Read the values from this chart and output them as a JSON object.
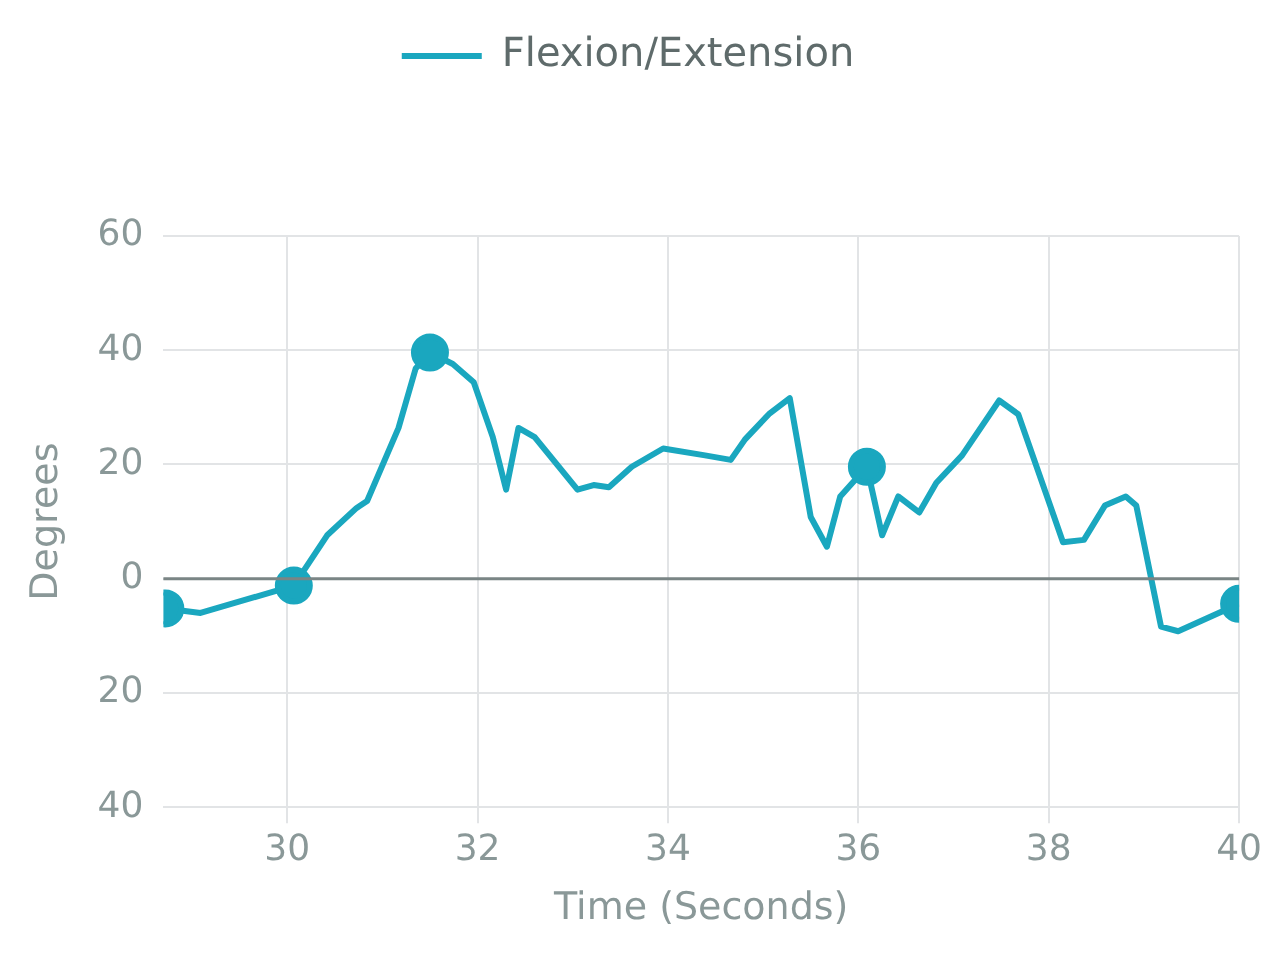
{
  "chart_data": {
    "type": "line",
    "xlabel": "Time (Seconds)",
    "ylabel": "Degrees",
    "legend": "top",
    "grid": true,
    "xlim": [
      28.7,
      40
    ],
    "xticks": [
      30,
      32,
      34,
      36,
      38,
      40
    ],
    "ylim": [
      -40,
      60
    ],
    "yticks": [
      {
        "value": -40,
        "label": "40"
      },
      {
        "value": -20,
        "label": "20"
      },
      0,
      20,
      40,
      60
    ],
    "ref_lines": [
      {
        "axis": "y",
        "value": 0,
        "color": "#7a8585"
      }
    ],
    "series": [
      {
        "name": "Flexion/Extension",
        "color": "#1aa7bf",
        "marker": "none",
        "x": [
          28.72,
          29.09,
          30.07,
          30.42,
          30.73,
          30.84,
          31.17,
          31.35,
          31.5,
          31.74,
          31.96,
          32.16,
          32.3,
          32.43,
          32.6,
          33.05,
          33.22,
          33.38,
          33.62,
          33.95,
          34.39,
          34.66,
          34.81,
          35.06,
          35.28,
          35.5,
          35.67,
          35.81,
          36.09,
          36.25,
          36.42,
          36.64,
          36.82,
          37.09,
          37.48,
          37.68,
          38.15,
          38.37,
          38.59,
          38.81,
          38.92,
          39.18,
          39.36,
          40
        ],
        "values": [
          -5.2,
          -6,
          -1.2,
          7.6,
          12.4,
          13.6,
          26.4,
          36.8,
          39.6,
          37.6,
          34.4,
          24.8,
          15.6,
          26.4,
          24.8,
          15.6,
          16.4,
          16,
          19.6,
          22.8,
          21.6,
          20.8,
          24.4,
          28.8,
          31.6,
          10.8,
          5.6,
          14.4,
          19.6,
          7.6,
          14.4,
          11.6,
          16.8,
          21.6,
          31.2,
          28.8,
          6.4,
          6.8,
          12.8,
          14.4,
          12.8,
          -8.4,
          -9.2,
          -4.4
        ]
      },
      {
        "type": "scatter",
        "color": "#1aa7bf",
        "marker": "circle",
        "x": [
          28.72,
          30.07,
          31.5,
          36.09,
          40
        ],
        "values": [
          -5.2,
          -1.2,
          39.6,
          19.6,
          -4.4
        ]
      }
    ]
  }
}
